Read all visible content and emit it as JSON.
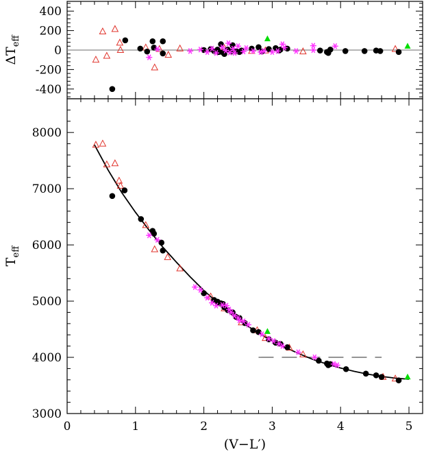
{
  "chart_data": [
    {
      "type": "scatter",
      "panel": "top",
      "ylabel": "ΔT",
      "ylabel_sub": "eff",
      "xlim": [
        0,
        5.2
      ],
      "ylim": [
        -500,
        500
      ],
      "y_ticks": [
        -400,
        -200,
        0,
        200,
        400
      ],
      "x_ticks": [
        0,
        1,
        2,
        3,
        4,
        5
      ],
      "x_tick_labels_shown": false,
      "reference_line_y": 0,
      "series": [
        {
          "marker": "open-triangle",
          "color": "#e0322a",
          "points": [
            [
              0.42,
              -100
            ],
            [
              0.52,
              190
            ],
            [
              0.58,
              -60
            ],
            [
              0.7,
              215
            ],
            [
              0.77,
              75
            ],
            [
              0.78,
              0
            ],
            [
              1.15,
              25
            ],
            [
              1.28,
              -180
            ],
            [
              1.35,
              10
            ],
            [
              1.48,
              -50
            ],
            [
              1.65,
              15
            ],
            [
              2.3,
              20
            ],
            [
              2.5,
              10
            ],
            [
              2.7,
              -10
            ],
            [
              2.9,
              -5
            ],
            [
              3.45,
              -15
            ],
            [
              4.8,
              10
            ]
          ]
        },
        {
          "marker": "filled-circle",
          "color": "#000000",
          "points": [
            [
              0.66,
              -400
            ],
            [
              0.85,
              100
            ],
            [
              1.07,
              15
            ],
            [
              1.17,
              -15
            ],
            [
              1.25,
              90
            ],
            [
              1.27,
              25
            ],
            [
              1.4,
              90
            ],
            [
              1.4,
              -35
            ],
            [
              2.0,
              0
            ],
            [
              2.1,
              10
            ],
            [
              2.15,
              -10
            ],
            [
              2.2,
              5
            ],
            [
              2.22,
              -20
            ],
            [
              2.25,
              60
            ],
            [
              2.28,
              -25
            ],
            [
              2.3,
              -40
            ],
            [
              2.35,
              5
            ],
            [
              2.4,
              -15
            ],
            [
              2.42,
              50
            ],
            [
              2.47,
              -10
            ],
            [
              2.52,
              -20
            ],
            [
              2.55,
              -5
            ],
            [
              2.7,
              15
            ],
            [
              2.8,
              30
            ],
            [
              2.85,
              -15
            ],
            [
              2.95,
              10
            ],
            [
              3.05,
              20
            ],
            [
              3.1,
              -5
            ],
            [
              3.12,
              5
            ],
            [
              3.22,
              15
            ],
            [
              3.7,
              -5
            ],
            [
              3.8,
              -20
            ],
            [
              3.82,
              -30
            ],
            [
              3.85,
              5
            ],
            [
              4.07,
              -10
            ],
            [
              4.35,
              -10
            ],
            [
              4.52,
              -5
            ],
            [
              4.58,
              -10
            ],
            [
              4.85,
              -20
            ]
          ]
        },
        {
          "marker": "asterisk",
          "color": "#ff33ff",
          "points": [
            [
              1.2,
              -75
            ],
            [
              1.32,
              10
            ],
            [
              1.8,
              -10
            ],
            [
              1.95,
              5
            ],
            [
              2.05,
              -20
            ],
            [
              2.12,
              15
            ],
            [
              2.18,
              -30
            ],
            [
              2.27,
              30
            ],
            [
              2.32,
              -5
            ],
            [
              2.36,
              70
            ],
            [
              2.38,
              -25
            ],
            [
              2.43,
              15
            ],
            [
              2.45,
              -30
            ],
            [
              2.5,
              40
            ],
            [
              2.58,
              -15
            ],
            [
              2.62,
              20
            ],
            [
              2.72,
              -10
            ],
            [
              2.83,
              -20
            ],
            [
              2.88,
              -10
            ],
            [
              3.0,
              -20
            ],
            [
              3.08,
              -10
            ],
            [
              3.15,
              60
            ],
            [
              3.18,
              25
            ],
            [
              3.35,
              -10
            ],
            [
              3.6,
              45
            ],
            [
              3.92,
              40
            ],
            [
              3.6,
              0
            ]
          ]
        },
        {
          "marker": "filled-triangle",
          "color": "#00dd00",
          "points": [
            [
              2.93,
              115
            ],
            [
              4.98,
              40
            ]
          ]
        }
      ]
    },
    {
      "type": "scatter",
      "panel": "bottom",
      "xlabel": "(V−L′)",
      "ylabel": "T",
      "ylabel_sub": "eff",
      "xlim": [
        0,
        5.2
      ],
      "ylim": [
        3000,
        8600
      ],
      "x_ticks": [
        0,
        1,
        2,
        3,
        4,
        5
      ],
      "y_ticks": [
        3000,
        4000,
        5000,
        6000,
        7000,
        8000
      ],
      "fit_curve": [
        [
          0.4,
          7780
        ],
        [
          0.6,
          7330
        ],
        [
          0.8,
          6930
        ],
        [
          1.0,
          6580
        ],
        [
          1.2,
          6260
        ],
        [
          1.4,
          5960
        ],
        [
          1.6,
          5690
        ],
        [
          1.8,
          5430
        ],
        [
          2.0,
          5190
        ],
        [
          2.2,
          4970
        ],
        [
          2.4,
          4770
        ],
        [
          2.6,
          4590
        ],
        [
          2.8,
          4430
        ],
        [
          3.0,
          4290
        ],
        [
          3.2,
          4170
        ],
        [
          3.4,
          4060
        ],
        [
          3.6,
          3960
        ],
        [
          3.8,
          3880
        ],
        [
          4.0,
          3810
        ],
        [
          4.2,
          3750
        ],
        [
          4.4,
          3700
        ],
        [
          4.6,
          3660
        ],
        [
          4.8,
          3630
        ],
        [
          5.0,
          3610
        ]
      ],
      "dashed_line": {
        "y": 4000,
        "x_range": [
          2.8,
          4.6
        ]
      },
      "series": [
        {
          "marker": "open-triangle",
          "color": "#e0322a",
          "points": [
            [
              0.42,
              7780
            ],
            [
              0.52,
              7800
            ],
            [
              0.58,
              7430
            ],
            [
              0.7,
              7450
            ],
            [
              0.76,
              7140
            ],
            [
              0.78,
              7050
            ],
            [
              1.15,
              6350
            ],
            [
              1.28,
              5920
            ],
            [
              1.47,
              5780
            ],
            [
              1.65,
              5580
            ],
            [
              2.1,
              5080
            ],
            [
              2.3,
              4870
            ],
            [
              2.55,
              4620
            ],
            [
              2.78,
              4480
            ],
            [
              2.9,
              4340
            ],
            [
              3.25,
              4170
            ],
            [
              3.45,
              4050
            ],
            [
              4.62,
              3650
            ],
            [
              4.8,
              3620
            ]
          ]
        },
        {
          "marker": "filled-circle",
          "color": "#000000",
          "points": [
            [
              0.66,
              6870
            ],
            [
              0.84,
              6970
            ],
            [
              1.08,
              6460
            ],
            [
              1.25,
              6250
            ],
            [
              1.27,
              6200
            ],
            [
              1.38,
              6040
            ],
            [
              1.4,
              5900
            ],
            [
              2.0,
              5140
            ],
            [
              2.15,
              5020
            ],
            [
              2.2,
              4990
            ],
            [
              2.22,
              4960
            ],
            [
              2.25,
              4960
            ],
            [
              2.28,
              4950
            ],
            [
              2.3,
              4890
            ],
            [
              2.35,
              4840
            ],
            [
              2.42,
              4800
            ],
            [
              2.47,
              4720
            ],
            [
              2.52,
              4700
            ],
            [
              2.6,
              4610
            ],
            [
              2.72,
              4480
            ],
            [
              2.8,
              4450
            ],
            [
              2.95,
              4320
            ],
            [
              3.05,
              4260
            ],
            [
              3.12,
              4240
            ],
            [
              3.22,
              4180
            ],
            [
              3.68,
              3940
            ],
            [
              3.8,
              3890
            ],
            [
              3.82,
              3860
            ],
            [
              3.85,
              3880
            ],
            [
              4.08,
              3790
            ],
            [
              4.37,
              3710
            ],
            [
              4.52,
              3680
            ],
            [
              4.6,
              3650
            ],
            [
              4.85,
              3590
            ]
          ]
        },
        {
          "marker": "asterisk",
          "color": "#ff33ff",
          "points": [
            [
              1.2,
              6170
            ],
            [
              1.32,
              6090
            ],
            [
              1.87,
              5250
            ],
            [
              1.95,
              5200
            ],
            [
              2.05,
              5060
            ],
            [
              2.12,
              4970
            ],
            [
              2.18,
              4920
            ],
            [
              2.27,
              4930
            ],
            [
              2.33,
              4920
            ],
            [
              2.37,
              4850
            ],
            [
              2.4,
              4800
            ],
            [
              2.45,
              4740
            ],
            [
              2.5,
              4700
            ],
            [
              2.58,
              4640
            ],
            [
              2.65,
              4580
            ],
            [
              2.85,
              4410
            ],
            [
              2.95,
              4330
            ],
            [
              3.02,
              4290
            ],
            [
              3.1,
              4240
            ],
            [
              3.15,
              4200
            ],
            [
              3.38,
              4090
            ],
            [
              3.62,
              4000
            ],
            [
              3.9,
              3880
            ],
            [
              3.95,
              3860
            ],
            [
              2.52,
              4660
            ]
          ]
        },
        {
          "marker": "filled-triangle",
          "color": "#00dd00",
          "points": [
            [
              2.93,
              4460
            ],
            [
              4.98,
              3650
            ]
          ]
        }
      ]
    }
  ]
}
